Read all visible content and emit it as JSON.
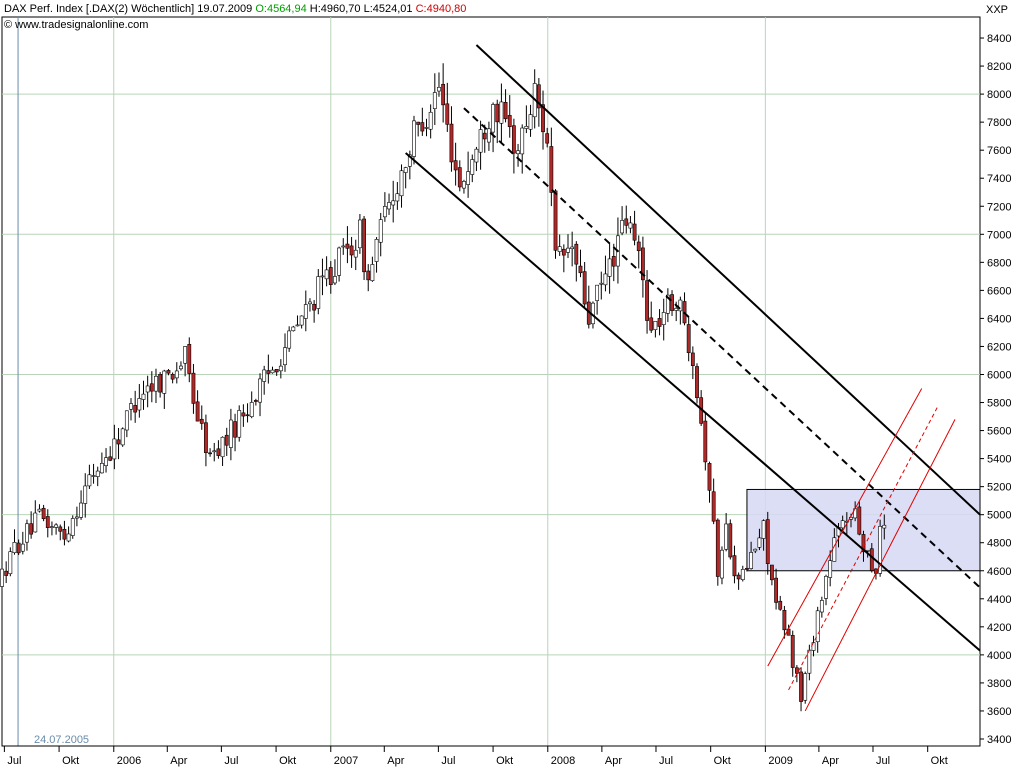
{
  "header": {
    "title": "DAX Perf. Index [.DAX(2)",
    "period": "Wöchentlich]",
    "date": "19.07.2009",
    "open": "O:4564,94",
    "high": "H:4960,70",
    "low": "L:4524,01",
    "close": "C:4940,80",
    "copyright": "© www.tradesignalonline.com",
    "axis_name": "XXP"
  },
  "colors": {
    "up": "#ffffff",
    "down": "#b02828",
    "grid": "#b8d4b8",
    "box_fill": "#d6d8f4",
    "channel_black": "#000000",
    "channel_red": "#e00000",
    "date_marker": "#6a8cab"
  },
  "date_marker_label": "24.07.2005",
  "chart_data": {
    "type": "candlestick",
    "interval": "weekly",
    "ylim": [
      3350,
      8550
    ],
    "yticks": [
      3400,
      3600,
      3800,
      4000,
      4200,
      4400,
      4600,
      4800,
      5000,
      5200,
      5400,
      5600,
      5800,
      6000,
      6200,
      6400,
      6600,
      6800,
      7000,
      7200,
      7400,
      7600,
      7800,
      8000,
      8200,
      8400
    ],
    "x_start": "2005-06-27",
    "x_end": "2009-12-28",
    "xticks": [
      {
        "label": "Jul",
        "date": "2005-07-01"
      },
      {
        "label": "Okt",
        "date": "2005-10-01"
      },
      {
        "label": "2006",
        "date": "2006-01-01"
      },
      {
        "label": "Apr",
        "date": "2006-04-01"
      },
      {
        "label": "Jul",
        "date": "2006-07-01"
      },
      {
        "label": "Okt",
        "date": "2006-10-01"
      },
      {
        "label": "2007",
        "date": "2007-01-01"
      },
      {
        "label": "Apr",
        "date": "2007-04-01"
      },
      {
        "label": "Jul",
        "date": "2007-07-01"
      },
      {
        "label": "Okt",
        "date": "2007-10-01"
      },
      {
        "label": "2008",
        "date": "2008-01-01"
      },
      {
        "label": "Apr",
        "date": "2008-04-01"
      },
      {
        "label": "Jul",
        "date": "2008-07-01"
      },
      {
        "label": "Okt",
        "date": "2008-10-01"
      },
      {
        "label": "2009",
        "date": "2009-01-01"
      },
      {
        "label": "Apr",
        "date": "2009-04-01"
      },
      {
        "label": "Jul",
        "date": "2009-07-01"
      },
      {
        "label": "Okt",
        "date": "2009-10-01"
      }
    ],
    "anchors": [
      {
        "date": "2005-06-27",
        "value": 4500
      },
      {
        "date": "2005-07-25",
        "value": 4760
      },
      {
        "date": "2005-09-05",
        "value": 4980
      },
      {
        "date": "2005-10-17",
        "value": 4850
      },
      {
        "date": "2005-11-28",
        "value": 5250
      },
      {
        "date": "2006-01-09",
        "value": 5500
      },
      {
        "date": "2006-02-20",
        "value": 5880
      },
      {
        "date": "2006-04-10",
        "value": 6000
      },
      {
        "date": "2006-05-08",
        "value": 6120
      },
      {
        "date": "2006-05-29",
        "value": 5700
      },
      {
        "date": "2006-06-19",
        "value": 5400
      },
      {
        "date": "2006-07-17",
        "value": 5550
      },
      {
        "date": "2006-09-18",
        "value": 5950
      },
      {
        "date": "2006-11-13",
        "value": 6350
      },
      {
        "date": "2007-01-01",
        "value": 6700
      },
      {
        "date": "2007-02-26",
        "value": 7000
      },
      {
        "date": "2007-03-12",
        "value": 6650
      },
      {
        "date": "2007-03-26",
        "value": 6950
      },
      {
        "date": "2007-05-28",
        "value": 7700
      },
      {
        "date": "2007-07-09",
        "value": 8050
      },
      {
        "date": "2007-07-23",
        "value": 7750
      },
      {
        "date": "2007-08-13",
        "value": 7350
      },
      {
        "date": "2007-09-10",
        "value": 7600
      },
      {
        "date": "2007-10-08",
        "value": 7950
      },
      {
        "date": "2007-11-19",
        "value": 7600
      },
      {
        "date": "2007-12-17",
        "value": 8000
      },
      {
        "date": "2008-01-07",
        "value": 7700
      },
      {
        "date": "2008-01-21",
        "value": 6800
      },
      {
        "date": "2008-02-18",
        "value": 6900
      },
      {
        "date": "2008-03-17",
        "value": 6400
      },
      {
        "date": "2008-04-14",
        "value": 6700
      },
      {
        "date": "2008-05-19",
        "value": 7100
      },
      {
        "date": "2008-06-09",
        "value": 6850
      },
      {
        "date": "2008-06-30",
        "value": 6300
      },
      {
        "date": "2008-07-21",
        "value": 6450
      },
      {
        "date": "2008-08-11",
        "value": 6550
      },
      {
        "date": "2008-09-08",
        "value": 6150
      },
      {
        "date": "2008-10-06",
        "value": 5200
      },
      {
        "date": "2008-10-20",
        "value": 4600
      },
      {
        "date": "2008-11-03",
        "value": 4900
      },
      {
        "date": "2008-11-24",
        "value": 4500
      },
      {
        "date": "2008-12-15",
        "value": 4700
      },
      {
        "date": "2009-01-05",
        "value": 4900
      },
      {
        "date": "2009-01-26",
        "value": 4350
      },
      {
        "date": "2009-02-16",
        "value": 4100
      },
      {
        "date": "2009-03-09",
        "value": 3700
      },
      {
        "date": "2009-04-06",
        "value": 4300
      },
      {
        "date": "2009-05-04",
        "value": 4800
      },
      {
        "date": "2009-06-01",
        "value": 5050
      },
      {
        "date": "2009-06-22",
        "value": 4800
      },
      {
        "date": "2009-07-13",
        "value": 4600
      },
      {
        "date": "2009-07-20",
        "value": 4940
      }
    ],
    "lines": [
      {
        "name": "upper-channel",
        "style": "solid",
        "color": "#000000",
        "from": {
          "date": "2007-09-03",
          "value": 8350
        },
        "to": {
          "date": "2009-12-28",
          "value": 5000
        }
      },
      {
        "name": "mid-channel",
        "style": "dashed",
        "color": "#000000",
        "from": {
          "date": "2007-08-13",
          "value": 7900
        },
        "to": {
          "date": "2009-12-28",
          "value": 4480
        }
      },
      {
        "name": "lower-channel",
        "style": "solid",
        "color": "#000000",
        "from": {
          "date": "2007-05-07",
          "value": 7580
        },
        "to": {
          "date": "2009-12-28",
          "value": 4030
        }
      },
      {
        "name": "red-channel-low",
        "style": "solid",
        "color": "#e00000",
        "from": {
          "date": "2009-03-09",
          "value": 3600
        },
        "to": {
          "date": "2009-11-16",
          "value": 5680
        }
      },
      {
        "name": "red-channel-mid",
        "style": "dashed",
        "color": "#e00000",
        "from": {
          "date": "2009-02-09",
          "value": 3750
        },
        "to": {
          "date": "2009-10-19",
          "value": 5780
        }
      },
      {
        "name": "red-channel-high",
        "style": "solid",
        "color": "#e00000",
        "from": {
          "date": "2009-01-05",
          "value": 3920
        },
        "to": {
          "date": "2009-09-21",
          "value": 5900
        }
      }
    ],
    "zone": {
      "from": "2008-12-01",
      "to": "2009-12-28",
      "low": 4600,
      "high": 5180
    },
    "marker_date": "2005-07-24",
    "grid": true,
    "legend": "none"
  }
}
